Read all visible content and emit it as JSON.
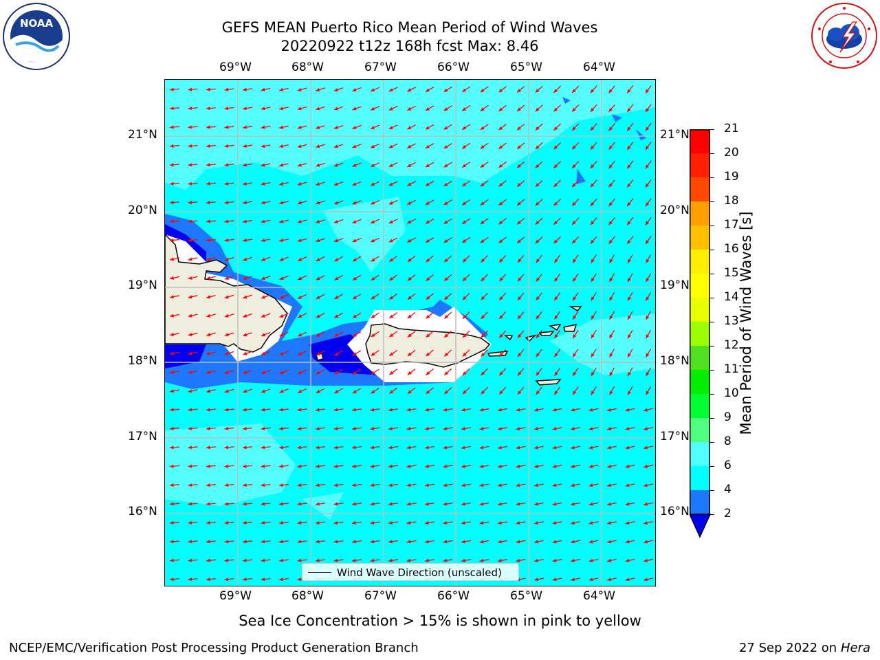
{
  "header": {
    "title_line1": "GEFS MEAN Puerto Rico Mean Period of Wind Waves",
    "title_line2": "20220922 t12z 168h fcst   Max: 8.46"
  },
  "logos": {
    "left": {
      "icon": "noaa-logo-icon",
      "text": "NOAA"
    },
    "right": {
      "icon": "national-weather-service-logo-icon"
    }
  },
  "axes": {
    "lon_labels": [
      "69°W",
      "68°W",
      "67°W",
      "66°W",
      "65°W",
      "64°W"
    ],
    "lat_labels": [
      "21°N",
      "20°N",
      "19°N",
      "18°N",
      "17°N",
      "16°N"
    ]
  },
  "legend": {
    "label": "Wind Wave Direction (unscaled)"
  },
  "colorbar": {
    "label": "Mean Period of Wind Waves [s]",
    "ticks": [
      "21",
      "20",
      "19",
      "18",
      "17",
      "16",
      "15",
      "14",
      "13",
      "12",
      "11",
      "10",
      "9",
      "8",
      "6",
      "4",
      "2"
    ],
    "colors": [
      "#ff0000",
      "#ff2000",
      "#ff4800",
      "#ff7800",
      "#ffa000",
      "#ffc000",
      "#ffee00",
      "#ffff00",
      "#e8ff00",
      "#c8ff00",
      "#9cff00",
      "#50e020",
      "#00ee00",
      "#00ff30",
      "#50ff80",
      "#a0ffff",
      "#50ffff",
      "#00ffff",
      "#1e78ff",
      "#0000ee"
    ]
  },
  "footer": {
    "note": "Sea Ice Concentration > 15% is shown in pink to yellow",
    "org": "NCEP/EMC/Verification Post Processing Product Generation Branch",
    "date": "27 Sep 2022 on",
    "machine": "Hera"
  },
  "field_colors": {
    "ocean": "#00ffff",
    "light_patch": "#55ffff",
    "shelf_blue": "#1e78ff",
    "deep_blue": "#0000ee",
    "land": "#efedde",
    "arrow": "#ff0000",
    "grid": "#bbbbbb"
  }
}
